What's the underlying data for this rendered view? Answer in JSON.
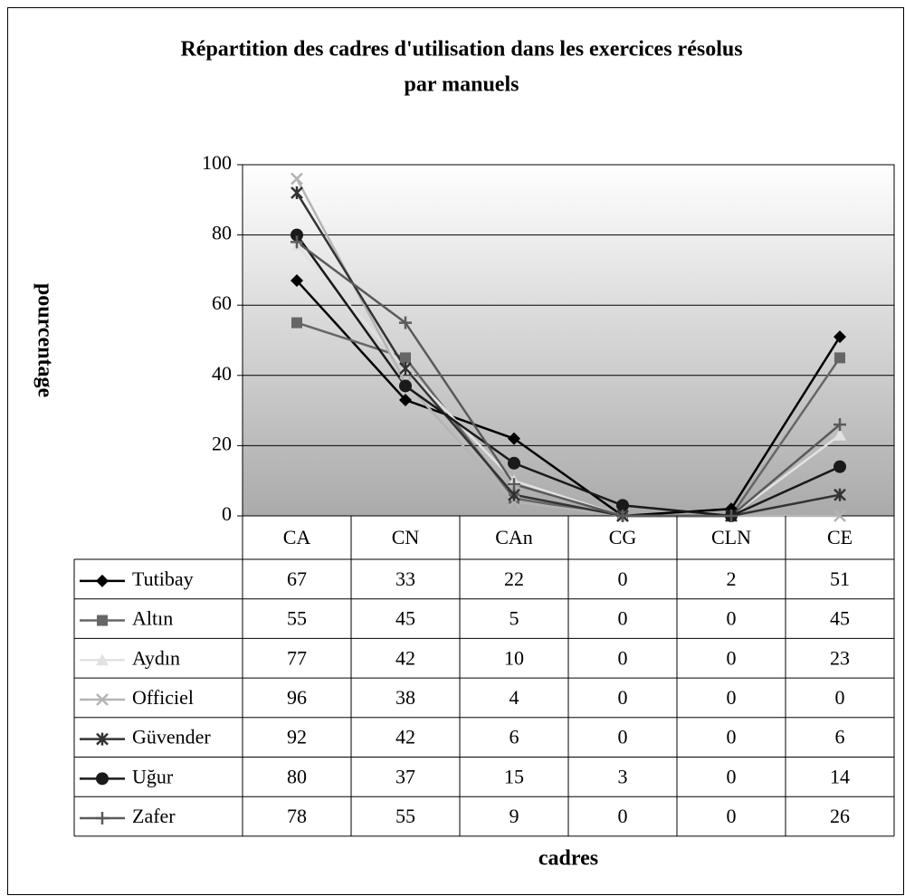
{
  "chart_data": {
    "type": "line",
    "title": [
      "Répartition des cadres d'utilisation dans les exercices résolus",
      "par manuels"
    ],
    "y_label": "pourcentage",
    "x_label": "cadres",
    "categories": [
      "CA",
      "CN",
      "CAn",
      "CG",
      "CLN",
      "CE"
    ],
    "ylim": [
      0,
      100
    ],
    "yticks": [
      0,
      20,
      40,
      60,
      80,
      100
    ],
    "grid": true,
    "series": [
      {
        "name": "Tutibay",
        "color": "#000000",
        "marker": "diamond",
        "values": [
          67,
          33,
          22,
          0,
          2,
          51
        ]
      },
      {
        "name": "Altın",
        "color": "#666666",
        "marker": "square",
        "values": [
          55,
          45,
          5,
          0,
          0,
          45
        ]
      },
      {
        "name": "Aydın",
        "color": "#e2e2e2",
        "marker": "triangle",
        "values": [
          77,
          42,
          10,
          0,
          0,
          23
        ]
      },
      {
        "name": "Officiel",
        "color": "#b4b4b4",
        "marker": "x",
        "values": [
          96,
          38,
          4,
          0,
          0,
          0
        ]
      },
      {
        "name": "Güvender",
        "color": "#333333",
        "marker": "star",
        "values": [
          92,
          42,
          6,
          0,
          0,
          6
        ]
      },
      {
        "name": "Uğur",
        "color": "#1a1a1a",
        "marker": "circle",
        "values": [
          80,
          37,
          15,
          3,
          0,
          14
        ]
      },
      {
        "name": "Zafer",
        "color": "#5a5a5a",
        "marker": "plus",
        "values": [
          78,
          55,
          9,
          0,
          0,
          26
        ]
      }
    ]
  }
}
